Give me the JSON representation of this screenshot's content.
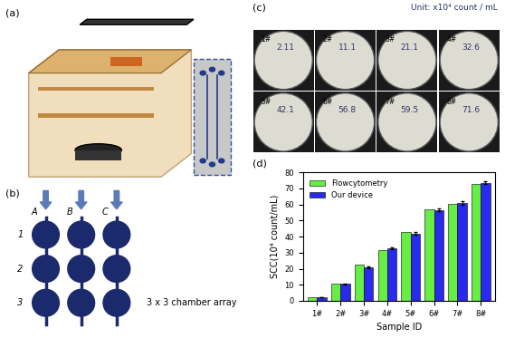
{
  "panel_labels": [
    "(a)",
    "(b)",
    "(c)",
    "(d)"
  ],
  "chamber_array": {
    "columns": [
      "A",
      "B",
      "C"
    ],
    "rows": [
      "1",
      "2",
      "3"
    ],
    "caption": "3 x 3 chamber array"
  },
  "microscopy": {
    "unit": "Unit: x10⁴ count / mL",
    "samples": [
      "1#",
      "2#",
      "3#",
      "4#",
      "5#",
      "6#",
      "7#",
      "8#"
    ],
    "values": [
      2.11,
      11.1,
      21.1,
      32.6,
      42.1,
      56.8,
      59.5,
      71.6
    ]
  },
  "chart_data": {
    "type": "bar",
    "categories": [
      "1#",
      "2#",
      "3#",
      "4#",
      "5#",
      "6#",
      "7#",
      "8#"
    ],
    "series": [
      {
        "name": "Flowcytometry",
        "color": "#66ee44",
        "values": [
          2.2,
          10.5,
          22.3,
          31.8,
          43.0,
          56.8,
          60.5,
          72.8
        ]
      },
      {
        "name": "Our device",
        "color": "#2a2aee",
        "values": [
          2.3,
          10.5,
          20.8,
          32.5,
          42.0,
          56.5,
          61.0,
          73.5
        ],
        "errors": [
          0.2,
          0.4,
          0.5,
          0.6,
          0.7,
          0.8,
          1.0,
          0.8
        ]
      }
    ],
    "x_label": "Sample ID",
    "y_label": "SCC(10⁴ count/mL)",
    "ylim": [
      0,
      80
    ],
    "yticks": [
      0,
      10,
      20,
      30,
      40,
      50,
      60,
      70,
      80
    ],
    "legend": "upper left"
  }
}
